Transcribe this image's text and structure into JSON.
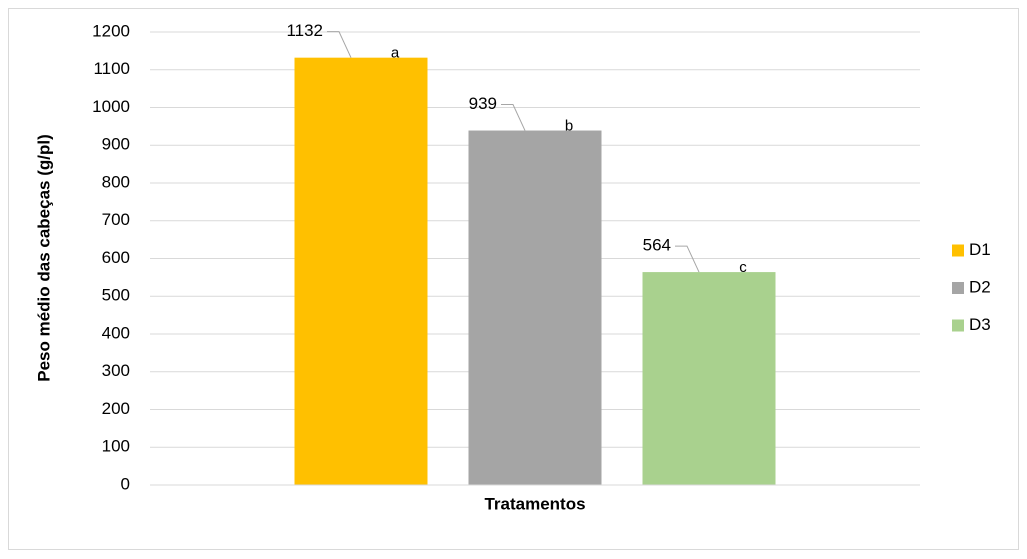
{
  "chart_data": {
    "type": "bar",
    "xlabel": "Tratamentos",
    "ylabel": "Peso médio das cabeças (g/pl)",
    "categories": [
      null
    ],
    "series": [
      {
        "name": "D1",
        "color": "#FFC000",
        "values": [
          1132
        ]
      },
      {
        "name": "D2",
        "color": "#A5A5A5",
        "values": [
          939
        ]
      },
      {
        "name": "D3",
        "color": "#A9D18E",
        "values": [
          564
        ]
      }
    ],
    "annotations": [
      "a",
      "b",
      "c"
    ],
    "ylim": [
      0,
      1200
    ],
    "yticks": [
      0,
      100,
      200,
      300,
      400,
      500,
      600,
      700,
      800,
      900,
      1000,
      1100,
      1200
    ],
    "grid": true,
    "legend": "right"
  }
}
